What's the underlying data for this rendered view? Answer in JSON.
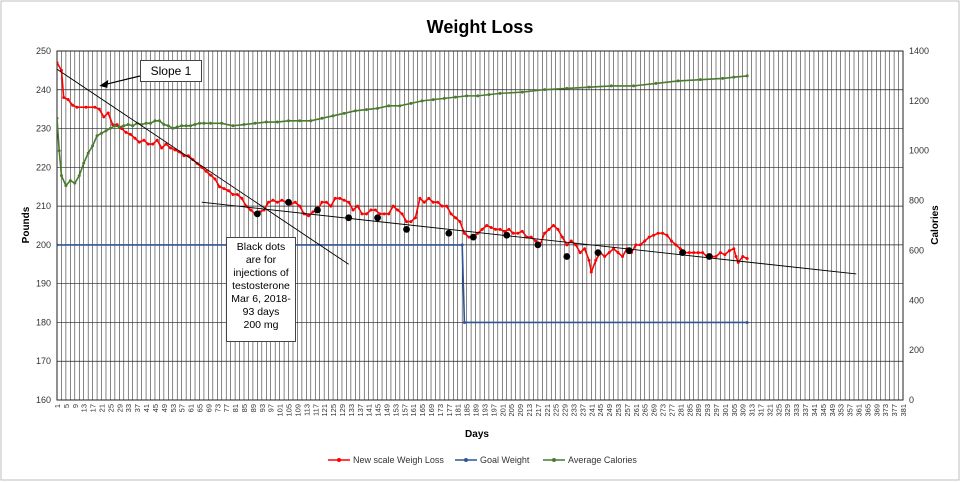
{
  "chart_data": {
    "type": "line",
    "title": "Weight Loss",
    "xlabel": "Days",
    "ylabel": "Pounds",
    "y2label": "Calories",
    "xlim": [
      1,
      381
    ],
    "ylim": [
      160,
      250
    ],
    "y2lim": [
      0,
      1400
    ],
    "x_ticks": [
      1,
      3,
      5,
      7,
      9,
      11,
      13,
      15,
      17,
      19,
      21,
      23,
      25,
      27,
      29,
      31,
      33,
      35,
      37,
      39,
      41,
      43,
      45,
      47,
      49,
      51,
      53,
      55,
      57,
      59,
      61,
      63,
      65,
      67,
      69,
      71,
      73,
      75,
      77,
      79,
      81,
      83,
      85,
      87,
      89,
      91,
      93,
      95,
      97,
      99,
      101,
      103,
      105,
      107,
      109,
      111,
      113,
      115,
      117,
      119,
      121,
      123,
      125,
      127,
      129,
      131,
      133,
      135,
      137,
      139,
      141,
      143,
      145,
      147,
      149,
      151,
      153,
      155,
      157,
      159,
      161,
      163,
      165,
      167,
      169,
      171,
      173,
      175,
      177,
      179,
      181,
      183,
      185,
      187,
      189,
      191,
      193,
      195,
      197,
      199,
      201,
      203,
      205,
      207,
      209,
      211,
      213,
      215,
      217,
      219,
      221,
      223,
      225,
      227,
      229,
      231,
      233,
      235,
      237,
      239,
      241,
      243,
      245,
      247,
      249,
      251,
      253,
      255,
      257,
      259,
      261,
      263,
      265,
      267,
      269,
      271,
      273,
      275,
      277,
      279,
      281,
      283,
      285,
      287,
      289,
      291,
      293,
      295,
      297,
      299,
      301,
      303,
      305,
      307,
      309,
      311,
      313,
      315,
      317,
      319,
      321,
      323,
      325,
      327,
      329,
      331,
      333,
      335,
      337,
      339,
      341,
      343,
      345,
      347,
      349,
      351,
      353,
      355,
      357,
      359,
      361,
      363,
      365,
      367,
      369,
      371,
      373,
      375,
      377,
      379,
      381
    ],
    "x_tick_labels": [
      "1",
      "5",
      "9",
      "13",
      "17",
      "21",
      "25",
      "29",
      "33",
      "37",
      "41",
      "45",
      "49",
      "53",
      "57",
      "61",
      "65",
      "69",
      "73",
      "77",
      "81",
      "85",
      "89",
      "93",
      "97",
      "101",
      "105",
      "109",
      "113",
      "117",
      "121",
      "125",
      "129",
      "133",
      "137",
      "141",
      "145",
      "149",
      "153",
      "157",
      "161",
      "165",
      "169",
      "173",
      "177",
      "181",
      "185",
      "189",
      "193",
      "197",
      "201",
      "205",
      "209",
      "213",
      "217",
      "221",
      "225",
      "229",
      "233",
      "237",
      "241",
      "245",
      "249",
      "253",
      "257",
      "261",
      "265",
      "269",
      "273",
      "277",
      "281",
      "285",
      "289",
      "293",
      "297",
      "301",
      "305",
      "309",
      "313",
      "317",
      "321",
      "325",
      "329",
      "333",
      "337",
      "341",
      "345",
      "349",
      "353",
      "357",
      "361",
      "365",
      "369",
      "373",
      "377",
      "381"
    ],
    "y_ticks": [
      160,
      170,
      180,
      190,
      200,
      210,
      220,
      230,
      240,
      250
    ],
    "y2_ticks": [
      0,
      200,
      400,
      600,
      800,
      1000,
      1200,
      1400
    ],
    "grid": true,
    "legend_position": "bottom",
    "series": [
      {
        "name": "New scale Weigh Loss",
        "axis": "left",
        "color": "#ff0000",
        "marker": "dot",
        "points": [
          [
            1,
            247
          ],
          [
            3,
            245
          ],
          [
            4,
            238
          ],
          [
            6,
            237.5
          ],
          [
            8,
            236
          ],
          [
            10,
            235.5
          ],
          [
            14,
            235.5
          ],
          [
            18,
            235.5
          ],
          [
            20,
            235
          ],
          [
            22,
            233
          ],
          [
            24,
            234
          ],
          [
            26,
            231
          ],
          [
            28,
            231
          ],
          [
            30,
            230
          ],
          [
            32,
            229
          ],
          [
            34,
            228.5
          ],
          [
            36,
            227.5
          ],
          [
            38,
            226.5
          ],
          [
            40,
            227
          ],
          [
            42,
            226
          ],
          [
            44,
            226
          ],
          [
            46,
            227
          ],
          [
            48,
            225
          ],
          [
            50,
            226
          ],
          [
            52,
            225
          ],
          [
            54,
            224.5
          ],
          [
            56,
            224
          ],
          [
            58,
            223
          ],
          [
            60,
            223
          ],
          [
            62,
            222
          ],
          [
            64,
            221
          ],
          [
            66,
            220
          ],
          [
            68,
            219
          ],
          [
            70,
            218
          ],
          [
            72,
            217
          ],
          [
            74,
            215
          ],
          [
            76,
            214.5
          ],
          [
            78,
            214
          ],
          [
            80,
            213
          ],
          [
            82,
            213
          ],
          [
            84,
            212
          ],
          [
            86,
            210
          ],
          [
            88,
            209
          ],
          [
            90,
            208
          ],
          [
            92,
            208.5
          ],
          [
            94,
            209
          ],
          [
            96,
            211
          ],
          [
            98,
            211.5
          ],
          [
            100,
            211
          ],
          [
            102,
            211.5
          ],
          [
            104,
            211
          ],
          [
            106,
            210.5
          ],
          [
            108,
            211
          ],
          [
            110,
            210
          ],
          [
            112,
            208
          ],
          [
            114,
            207.5
          ],
          [
            116,
            208.5
          ],
          [
            118,
            209
          ],
          [
            120,
            211
          ],
          [
            122,
            211
          ],
          [
            124,
            210
          ],
          [
            126,
            212
          ],
          [
            128,
            212
          ],
          [
            130,
            211.5
          ],
          [
            132,
            211
          ],
          [
            134,
            209
          ],
          [
            136,
            210
          ],
          [
            138,
            208
          ],
          [
            140,
            208
          ],
          [
            142,
            209
          ],
          [
            144,
            209
          ],
          [
            146,
            208
          ],
          [
            148,
            208
          ],
          [
            150,
            208
          ],
          [
            152,
            210
          ],
          [
            154,
            209
          ],
          [
            156,
            208
          ],
          [
            158,
            206
          ],
          [
            160,
            206
          ],
          [
            162,
            207
          ],
          [
            164,
            212
          ],
          [
            166,
            211
          ],
          [
            168,
            212
          ],
          [
            170,
            211
          ],
          [
            172,
            211
          ],
          [
            174,
            210
          ],
          [
            176,
            210
          ],
          [
            178,
            208
          ],
          [
            180,
            207
          ],
          [
            182,
            206
          ],
          [
            184,
            203
          ],
          [
            186,
            202
          ],
          [
            188,
            202
          ],
          [
            190,
            203
          ],
          [
            192,
            204
          ],
          [
            194,
            205
          ],
          [
            196,
            204.5
          ],
          [
            198,
            204
          ],
          [
            200,
            204
          ],
          [
            202,
            203.5
          ],
          [
            204,
            204
          ],
          [
            206,
            203
          ],
          [
            208,
            203
          ],
          [
            210,
            203.5
          ],
          [
            212,
            202
          ],
          [
            214,
            202
          ],
          [
            216,
            201
          ],
          [
            218,
            200
          ],
          [
            220,
            203
          ],
          [
            222,
            204
          ],
          [
            224,
            205
          ],
          [
            226,
            204
          ],
          [
            228,
            202
          ],
          [
            230,
            200
          ],
          [
            232,
            201
          ],
          [
            234,
            200
          ],
          [
            236,
            198
          ],
          [
            238,
            199
          ],
          [
            240,
            196
          ],
          [
            241,
            193
          ],
          [
            243,
            196
          ],
          [
            245,
            198
          ],
          [
            247,
            197
          ],
          [
            249,
            198
          ],
          [
            251,
            199
          ],
          [
            253,
            198
          ],
          [
            255,
            197
          ],
          [
            257,
            199
          ],
          [
            259,
            198
          ],
          [
            261,
            200
          ],
          [
            263,
            200
          ],
          [
            265,
            201
          ],
          [
            267,
            202
          ],
          [
            269,
            202.5
          ],
          [
            271,
            203
          ],
          [
            273,
            203
          ],
          [
            275,
            202.5
          ],
          [
            277,
            201
          ],
          [
            279,
            200
          ],
          [
            281,
            199
          ],
          [
            283,
            198
          ],
          [
            285,
            198
          ],
          [
            287,
            198
          ],
          [
            289,
            198
          ],
          [
            291,
            198
          ],
          [
            293,
            197
          ],
          [
            295,
            197
          ],
          [
            297,
            197
          ],
          [
            299,
            198
          ],
          [
            301,
            197.5
          ],
          [
            303,
            198.5
          ],
          [
            305,
            199
          ],
          [
            306,
            197
          ],
          [
            307,
            195.5
          ],
          [
            309,
            197
          ],
          [
            311,
            196.5
          ]
        ]
      },
      {
        "name": "Goal Weight",
        "axis": "left",
        "color": "#2f5597",
        "marker": "dot",
        "points": [
          [
            1,
            200
          ],
          [
            183,
            200
          ],
          [
            184,
            180
          ],
          [
            311,
            180
          ]
        ]
      },
      {
        "name": "Average Calories",
        "axis": "right",
        "color": "#4a7c2f",
        "marker": "dot",
        "points": [
          [
            1,
            1130
          ],
          [
            2,
            1000
          ],
          [
            3,
            900
          ],
          [
            5,
            860
          ],
          [
            7,
            880
          ],
          [
            9,
            870
          ],
          [
            11,
            900
          ],
          [
            13,
            950
          ],
          [
            15,
            990
          ],
          [
            17,
            1020
          ],
          [
            19,
            1060
          ],
          [
            21,
            1070
          ],
          [
            23,
            1080
          ],
          [
            25,
            1090
          ],
          [
            27,
            1100
          ],
          [
            29,
            1095
          ],
          [
            31,
            1100
          ],
          [
            33,
            1105
          ],
          [
            35,
            1100
          ],
          [
            37,
            1110
          ],
          [
            39,
            1105
          ],
          [
            41,
            1110
          ],
          [
            43,
            1110
          ],
          [
            45,
            1120
          ],
          [
            47,
            1120
          ],
          [
            49,
            1105
          ],
          [
            51,
            1100
          ],
          [
            53,
            1090
          ],
          [
            55,
            1095
          ],
          [
            57,
            1100
          ],
          [
            59,
            1100
          ],
          [
            61,
            1100
          ],
          [
            63,
            1105
          ],
          [
            65,
            1110
          ],
          [
            67,
            1110
          ],
          [
            70,
            1110
          ],
          [
            75,
            1110
          ],
          [
            80,
            1100
          ],
          [
            85,
            1105
          ],
          [
            90,
            1110
          ],
          [
            95,
            1115
          ],
          [
            100,
            1115
          ],
          [
            105,
            1120
          ],
          [
            110,
            1120
          ],
          [
            115,
            1120
          ],
          [
            120,
            1130
          ],
          [
            125,
            1140
          ],
          [
            130,
            1150
          ],
          [
            135,
            1160
          ],
          [
            140,
            1165
          ],
          [
            145,
            1170
          ],
          [
            150,
            1180
          ],
          [
            155,
            1180
          ],
          [
            160,
            1190
          ],
          [
            165,
            1200
          ],
          [
            170,
            1205
          ],
          [
            175,
            1210
          ],
          [
            180,
            1215
          ],
          [
            185,
            1220
          ],
          [
            190,
            1220
          ],
          [
            195,
            1225
          ],
          [
            200,
            1230
          ],
          [
            210,
            1235
          ],
          [
            220,
            1245
          ],
          [
            230,
            1250
          ],
          [
            240,
            1255
          ],
          [
            250,
            1260
          ],
          [
            260,
            1260
          ],
          [
            270,
            1270
          ],
          [
            280,
            1280
          ],
          [
            290,
            1285
          ],
          [
            300,
            1290
          ],
          [
            305,
            1295
          ],
          [
            311,
            1300
          ]
        ]
      },
      {
        "name": "Slope 1 trendline",
        "axis": "left",
        "color": "#000000",
        "marker": "none",
        "points": [
          [
            -6,
            248
          ],
          [
            132,
            195
          ]
        ]
      },
      {
        "name": "Trendline",
        "axis": "left",
        "color": "#000000",
        "marker": "none",
        "points": [
          [
            66,
            211
          ],
          [
            360,
            192.5
          ]
        ]
      },
      {
        "name": "Testosterone injections",
        "axis": "left",
        "color": "#000000",
        "marker": "large-dot",
        "points": [
          [
            91,
            208
          ],
          [
            105,
            211
          ],
          [
            118,
            209
          ],
          [
            132,
            207
          ],
          [
            145,
            207
          ],
          [
            158,
            204
          ],
          [
            177,
            203
          ],
          [
            188,
            202
          ],
          [
            203,
            202.5
          ],
          [
            217,
            200
          ],
          [
            230,
            197
          ],
          [
            244,
            198
          ],
          [
            258,
            198.5
          ],
          [
            282,
            198
          ],
          [
            294,
            197
          ]
        ]
      }
    ],
    "legend": [
      "New scale Weigh Loss",
      "Goal Weight",
      "Average Calories"
    ],
    "annotations": {
      "slope_label": "Slope 1",
      "slope_arrow_to": [
        20,
        241
      ],
      "dots_note": [
        "Black dots",
        "are for",
        "injections of",
        "testosterone",
        "Mar 6, 2018-",
        "93 days",
        "200 mg"
      ]
    }
  }
}
